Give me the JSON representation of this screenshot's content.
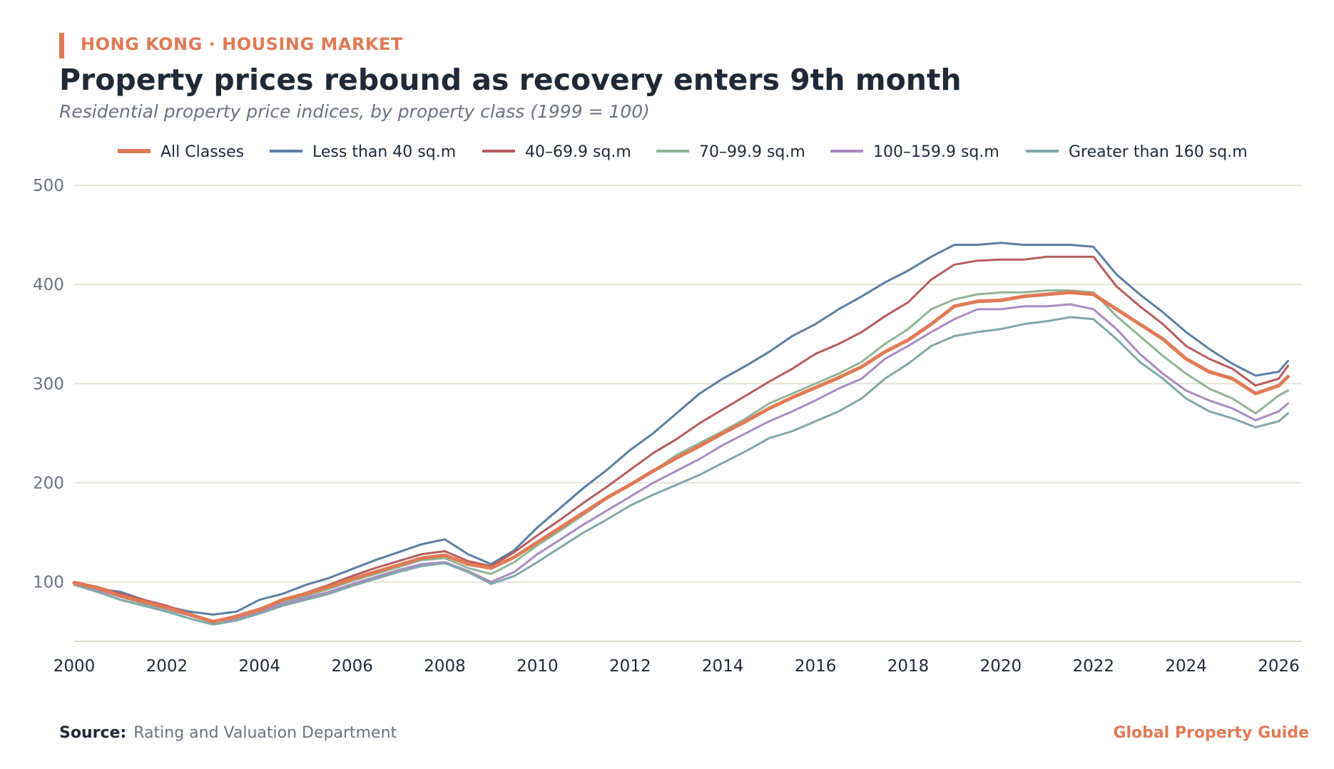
{
  "header": {
    "kicker": "HONG KONG · HOUSING MARKET",
    "title": "Property prices rebound as recovery enters 9th month",
    "subtitle": "Residential property price indices, by property class (1999 = 100)"
  },
  "footer": {
    "source_label": "Source:",
    "source_text": "Rating and Valuation Department",
    "brand": "Global Property Guide"
  },
  "chart_data": {
    "type": "line",
    "title": "Property prices rebound as recovery enters 9th month",
    "subtitle": "Residential property price indices, by property class (1999 = 100)",
    "xlabel": "",
    "ylabel": "",
    "xlim": [
      2000,
      2026.5
    ],
    "ylim": [
      40,
      500
    ],
    "yticks": [
      100,
      200,
      300,
      400,
      500
    ],
    "xticks": [
      2000,
      2002,
      2004,
      2006,
      2008,
      2010,
      2012,
      2014,
      2016,
      2018,
      2020,
      2022,
      2024,
      2026
    ],
    "grid": "horizontal",
    "legend_position": "top",
    "x": [
      2000.0,
      2000.5,
      2001.0,
      2001.5,
      2002.0,
      2002.5,
      2003.0,
      2003.5,
      2004.0,
      2004.5,
      2005.0,
      2005.5,
      2006.0,
      2006.5,
      2007.0,
      2007.5,
      2008.0,
      2008.5,
      2009.0,
      2009.5,
      2010.0,
      2010.5,
      2011.0,
      2011.5,
      2012.0,
      2012.5,
      2013.0,
      2013.5,
      2014.0,
      2014.5,
      2015.0,
      2015.5,
      2016.0,
      2016.5,
      2017.0,
      2017.5,
      2018.0,
      2018.5,
      2019.0,
      2019.5,
      2020.0,
      2020.5,
      2021.0,
      2021.5,
      2022.0,
      2022.5,
      2023.0,
      2023.5,
      2024.0,
      2024.5,
      2025.0,
      2025.5,
      2026.0,
      2026.2
    ],
    "series": [
      {
        "name": "All Classes",
        "color": "#e07a55",
        "width": 5,
        "values": [
          99,
          94,
          86,
          80,
          74,
          67,
          60,
          65,
          72,
          82,
          88,
          95,
          103,
          110,
          117,
          124,
          127,
          118,
          114,
          125,
          140,
          155,
          170,
          185,
          198,
          212,
          225,
          237,
          250,
          262,
          275,
          286,
          296,
          306,
          317,
          332,
          344,
          360,
          378,
          383,
          384,
          388,
          390,
          392,
          390,
          375,
          360,
          345,
          325,
          312,
          305,
          290,
          298,
          307
        ]
      },
      {
        "name": "Less than 40 sq.m",
        "color": "#5a7fa5",
        "width": 3,
        "values": [
          98,
          93,
          90,
          82,
          75,
          70,
          67,
          70,
          82,
          88,
          97,
          104,
          113,
          122,
          130,
          138,
          143,
          128,
          118,
          132,
          155,
          175,
          195,
          213,
          233,
          250,
          270,
          290,
          305,
          318,
          332,
          348,
          360,
          375,
          388,
          402,
          414,
          428,
          440,
          440,
          442,
          440,
          440,
          440,
          438,
          410,
          390,
          372,
          352,
          335,
          320,
          308,
          312,
          323
        ]
      },
      {
        "name": "40–69.9 sq.m",
        "color": "#b85c5c",
        "width": 3,
        "values": [
          100,
          95,
          88,
          82,
          76,
          68,
          60,
          66,
          73,
          82,
          89,
          97,
          106,
          114,
          121,
          128,
          131,
          121,
          116,
          130,
          147,
          163,
          180,
          196,
          213,
          230,
          244,
          260,
          274,
          288,
          302,
          315,
          330,
          340,
          352,
          368,
          382,
          405,
          420,
          424,
          425,
          425,
          428,
          428,
          428,
          398,
          378,
          360,
          338,
          325,
          315,
          298,
          305,
          318
        ]
      },
      {
        "name": "70–99.9 sq.m",
        "color": "#8fb596",
        "width": 3,
        "values": [
          99,
          93,
          85,
          78,
          72,
          66,
          59,
          63,
          70,
          79,
          86,
          93,
          101,
          108,
          115,
          122,
          124,
          114,
          108,
          120,
          137,
          152,
          168,
          184,
          198,
          212,
          228,
          240,
          252,
          265,
          280,
          290,
          300,
          310,
          322,
          340,
          355,
          375,
          385,
          390,
          392,
          392,
          394,
          394,
          392,
          368,
          348,
          328,
          310,
          295,
          285,
          270,
          288,
          293
        ]
      },
      {
        "name": "100–159.9 sq.m",
        "color": "#a98bc4",
        "width": 3,
        "values": [
          98,
          92,
          85,
          79,
          73,
          66,
          60,
          63,
          70,
          78,
          84,
          90,
          98,
          105,
          112,
          118,
          120,
          111,
          100,
          110,
          128,
          143,
          158,
          172,
          186,
          200,
          212,
          224,
          238,
          250,
          262,
          272,
          283,
          295,
          305,
          325,
          338,
          352,
          365,
          375,
          375,
          378,
          378,
          380,
          375,
          355,
          330,
          310,
          293,
          283,
          275,
          263,
          272,
          280
        ]
      },
      {
        "name": "Greater than 160 sq.m",
        "color": "#7fa8a8",
        "width": 3,
        "values": [
          97,
          90,
          82,
          76,
          70,
          63,
          57,
          61,
          68,
          76,
          82,
          88,
          96,
          103,
          110,
          116,
          119,
          110,
          98,
          106,
          120,
          135,
          150,
          163,
          177,
          188,
          198,
          208,
          220,
          232,
          245,
          252,
          262,
          272,
          285,
          305,
          320,
          338,
          348,
          352,
          355,
          360,
          363,
          367,
          365,
          345,
          322,
          305,
          285,
          272,
          265,
          256,
          262,
          270
        ]
      }
    ]
  }
}
